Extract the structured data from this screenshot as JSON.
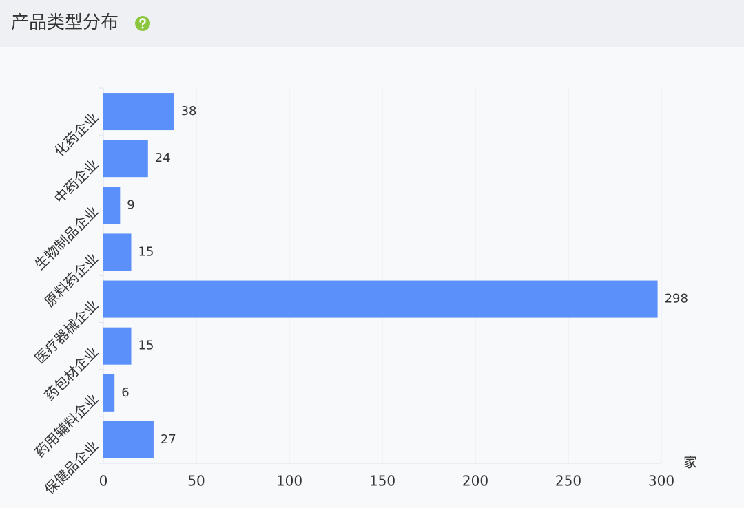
{
  "chart_data": {
    "type": "bar",
    "orientation": "horizontal",
    "title": "产品类型分布",
    "categories": [
      "化药企业",
      "中药企业",
      "生物制品企业",
      "原料药企业",
      "医疗器械企业",
      "药包材企业",
      "药用辅料企业",
      "保健品企业"
    ],
    "values": [
      38,
      24,
      9,
      15,
      298,
      15,
      6,
      27
    ],
    "color": "#5b8ff9",
    "x_label": "家",
    "xlim": [
      0,
      300
    ],
    "xticks": [
      0,
      50,
      100,
      150,
      200,
      250,
      300
    ],
    "grid": true
  }
}
